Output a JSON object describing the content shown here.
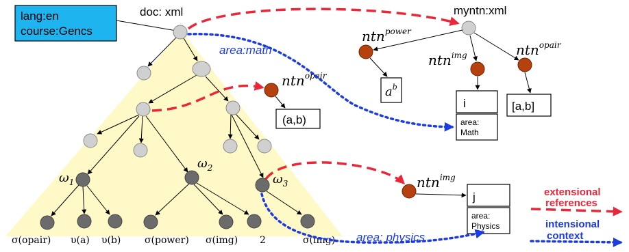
{
  "meta_box": {
    "line1": "lang:en",
    "line2": "course:Gencs",
    "color": "#1eb4f0"
  },
  "doc_label": "doc: xml",
  "myntn_label": "myntn:xml",
  "area_math": "area:math",
  "area_physics": "area: physics",
  "omega": {
    "w1_sym": "ω",
    "w1_sub": "1",
    "w2_sym": "ω",
    "w2_sub": "2",
    "w3_sym": "ω",
    "w3_sub": "3"
  },
  "ntn": {
    "base": "ntn",
    "power": "power",
    "img": "img",
    "opair": "opair"
  },
  "results": {
    "a_base": "a",
    "a_sup": "b",
    "i": "i",
    "ab_bracket": "[a,b]",
    "ab_paren": "(a,b)",
    "j": "j"
  },
  "area_boxes": {
    "math_l1": "area:",
    "math_l2": "Math",
    "physics_l1": "area:",
    "physics_l2": "Physics"
  },
  "leaves": {
    "l1": "σ(opair)",
    "l2": "υ(a)",
    "l3": "υ(b)",
    "l4": "σ(power)",
    "l5": "σ(img)",
    "l6": "2",
    "l7": "σ(img)"
  },
  "legend": {
    "ext_line1": "extensional",
    "ext_line2": "references",
    "int_line1": "intensional",
    "int_line2": "context",
    "ext_color": "#e8283a",
    "int_color": "#1c3be0"
  },
  "colors": {
    "triangle": "#fff9c8",
    "light_node": "#d0d0d0",
    "dark_node": "#6b6b6b",
    "brown_node": "#b5420e"
  }
}
